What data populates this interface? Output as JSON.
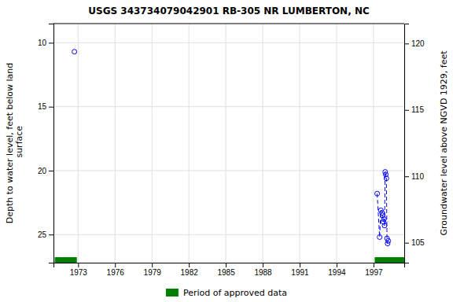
{
  "chart_data": {
    "type": "scatter",
    "title": "USGS 343734079042901 RB-305 NR LUMBERTON, NC",
    "ylabel": "Depth to water level, feet below land\n surface",
    "y2label": "Groundwater level above NGVD 1929, feet",
    "xlim": [
      1971.0,
      1999.5
    ],
    "xticks": [
      1973,
      1976,
      1979,
      1982,
      1985,
      1988,
      1991,
      1994,
      1997
    ],
    "ylim": [
      27.2,
      8.5
    ],
    "yticks": [
      10,
      15,
      20,
      25
    ],
    "y2lim": [
      103.5,
      121.5
    ],
    "y2ticks": [
      105,
      110,
      115,
      120
    ],
    "grid": true,
    "legend": "bottom",
    "series": [
      {
        "type": "scatter",
        "marker": "open_circle",
        "color": "#0000ff",
        "x": [
          1972.7,
          1997.3,
          1997.5,
          1997.6,
          1997.7,
          1997.75,
          1997.8,
          1997.85,
          1997.9,
          1997.95,
          1998.0,
          1998.05,
          1998.1,
          1998.15,
          1998.2
        ],
        "values": [
          10.7,
          21.8,
          25.2,
          23.1,
          23.3,
          23.5,
          24.0,
          23.8,
          24.3,
          20.1,
          20.3,
          20.6,
          25.3,
          25.7,
          25.5
        ]
      },
      {
        "type": "line",
        "line_style": "dashed",
        "color": "#0000ff",
        "x": [
          1997.3,
          1997.5,
          1997.6,
          1997.7,
          1997.75,
          1997.8,
          1997.85,
          1997.9,
          1997.95,
          1998.0,
          1998.05,
          1998.1,
          1998.15,
          1998.2
        ],
        "values": [
          21.8,
          25.2,
          23.1,
          23.3,
          23.5,
          24.0,
          23.8,
          24.3,
          20.1,
          20.3,
          20.6,
          25.3,
          25.7,
          25.5
        ]
      },
      {
        "type": "range",
        "name": "Period of approved data",
        "color": "#008000",
        "periods": [
          {
            "start": 1971.1,
            "end": 1972.9
          },
          {
            "start": 1997.1,
            "end": 1999.5
          }
        ]
      }
    ]
  }
}
